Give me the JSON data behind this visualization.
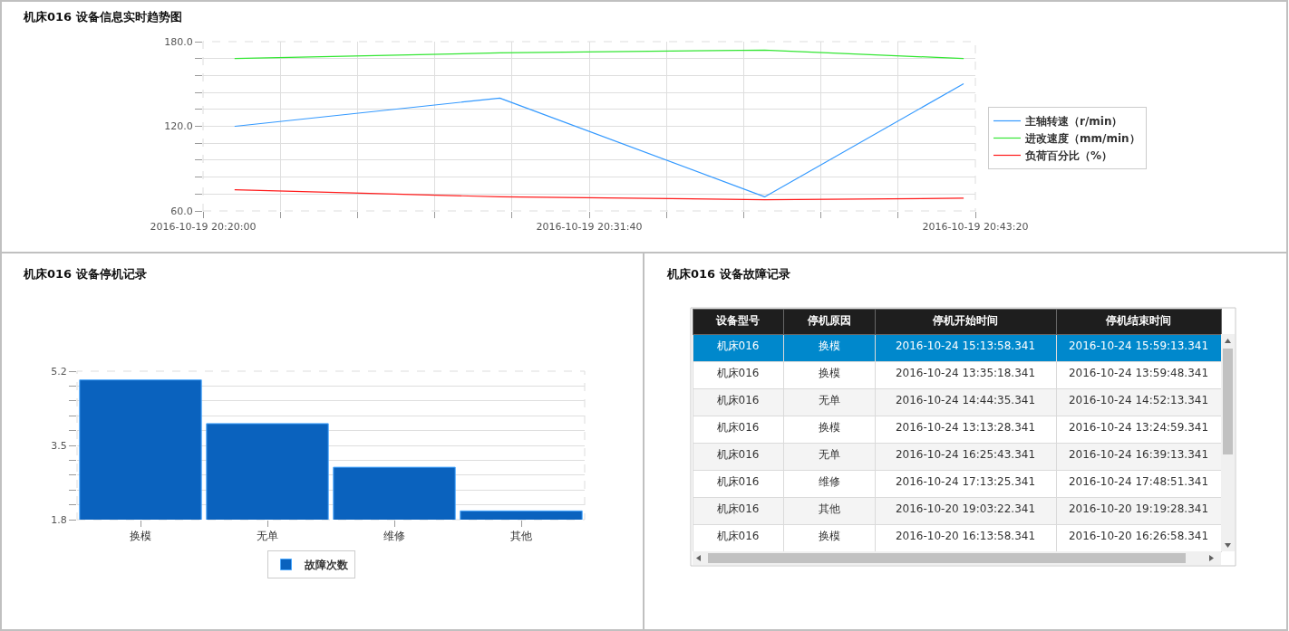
{
  "chart_data": [
    {
      "type": "line",
      "title": "机床016 设备信息实时趋势图",
      "x": [
        "2016-10-19T20:20:58",
        "2016-10-19T20:28:58",
        "2016-10-19T20:36:58",
        "2016-10-19T20:42:58"
      ],
      "series": [
        {
          "name": "主轴转速（r/min）",
          "color": "#3399ff",
          "values": [
            120,
            140,
            70,
            150
          ]
        },
        {
          "name": "进改速度（mm/min）",
          "color": "#33e633",
          "values": [
            168,
            172,
            174,
            168
          ]
        },
        {
          "name": "负荷百分比（%）",
          "color": "#ff1a1a",
          "values": [
            75,
            70,
            68,
            69
          ]
        }
      ],
      "xlim": [
        "2016-10-19T20:20:00",
        "2016-10-19T20:43:20"
      ],
      "xticks": [
        {
          "value": "2016-10-19T20:20:00",
          "label": "2016-10-19 20:20:00"
        },
        {
          "value": "2016-10-19T20:22:20",
          "label": null
        },
        {
          "value": "2016-10-19T20:24:40",
          "label": null
        },
        {
          "value": "2016-10-19T20:27:00",
          "label": null
        },
        {
          "value": "2016-10-19T20:29:20",
          "label": null
        },
        {
          "value": "2016-10-19T20:31:40",
          "label": "2016-10-19 20:31:40"
        },
        {
          "value": "2016-10-19T20:34:00",
          "label": null
        },
        {
          "value": "2016-10-19T20:36:20",
          "label": null
        },
        {
          "value": "2016-10-19T20:38:40",
          "label": null
        },
        {
          "value": "2016-10-19T20:41:00",
          "label": null
        },
        {
          "value": "2016-10-19T20:43:20",
          "label": "2016-10-19 20:43:20"
        }
      ],
      "ylim": [
        60,
        180
      ],
      "yticks": [
        {
          "value": 60,
          "label": "60.0"
        },
        {
          "value": 72,
          "label": null
        },
        {
          "value": 84,
          "label": null
        },
        {
          "value": 96,
          "label": null
        },
        {
          "value": 108,
          "label": null
        },
        {
          "value": 120,
          "label": "120.0"
        },
        {
          "value": 132,
          "label": null
        },
        {
          "value": 144,
          "label": null
        },
        {
          "value": 156,
          "label": null
        },
        {
          "value": 168,
          "label": null
        },
        {
          "value": 180,
          "label": "180.0"
        }
      ],
      "grid": true,
      "legend": "right",
      "line_style": "solid"
    },
    {
      "type": "bar",
      "title": "机床016 设备停机记录",
      "categories": [
        "换模",
        "无单",
        "维修",
        "其他"
      ],
      "series": [
        {
          "name": "故障次数",
          "color": "#0a62be",
          "values": [
            5,
            4,
            3,
            2
          ]
        }
      ],
      "ylim": [
        1.8,
        5.2
      ],
      "yticks": [
        1.8,
        {
          "value": 2.14,
          "label": null
        },
        {
          "value": 2.48,
          "label": null
        },
        {
          "value": 2.82,
          "label": null
        },
        {
          "value": 3.16,
          "label": null
        },
        3.5,
        {
          "value": 3.84,
          "label": null
        },
        {
          "value": 4.18,
          "label": null
        },
        {
          "value": 4.52,
          "label": null
        },
        {
          "value": 4.86,
          "label": null
        },
        5.2
      ],
      "grid": "y",
      "legend": "bottom"
    },
    {
      "type": "other",
      "title": "机床016 设备故障记录",
      "categories": [
        "设备型号",
        "停机原因",
        "停机开始时间",
        "停机结束时间"
      ],
      "cell_labels": [
        [
          "机床016",
          "换模",
          "2016-10-24 15:13:58.341",
          "2016-10-24 15:59:13.341"
        ],
        [
          "机床016",
          "换模",
          "2016-10-24 13:35:18.341",
          "2016-10-24 13:59:48.341"
        ],
        [
          "机床016",
          "无单",
          "2016-10-24 14:44:35.341",
          "2016-10-24 14:52:13.341"
        ],
        [
          "机床016",
          "换模",
          "2016-10-24 13:13:28.341",
          "2016-10-24 13:24:59.341"
        ],
        [
          "机床016",
          "无单",
          "2016-10-24 16:25:43.341",
          "2016-10-24 16:39:13.341"
        ],
        [
          "机床016",
          "维修",
          "2016-10-24 17:13:25.341",
          "2016-10-24 17:48:51.341"
        ],
        [
          "机床016",
          "其他",
          "2016-10-20 19:03:22.341",
          "2016-10-20 19:19:28.341"
        ],
        [
          "机床016",
          "换模",
          "2016-10-20 16:13:58.341",
          "2016-10-20 16:26:58.341"
        ]
      ]
    }
  ]
}
